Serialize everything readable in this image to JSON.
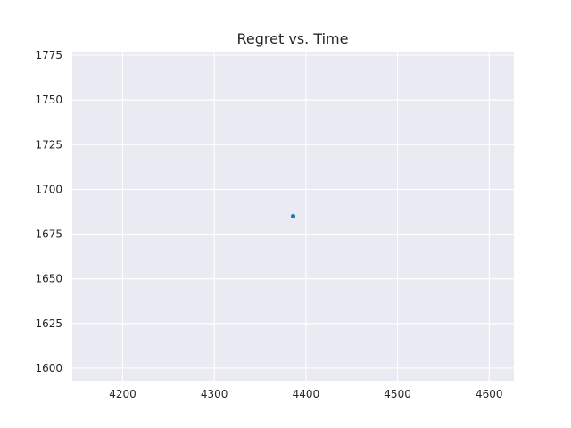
{
  "chart_data": {
    "type": "scatter",
    "title": "Regret vs. Time",
    "xlabel": "",
    "ylabel": "",
    "xlim": [
      4145,
      4627
    ],
    "ylim": [
      1593,
      1777
    ],
    "xticks": [
      4200,
      4300,
      4400,
      4500,
      4600
    ],
    "yticks": [
      1600,
      1625,
      1650,
      1675,
      1700,
      1725,
      1750,
      1775
    ],
    "grid": true,
    "series": [
      {
        "points": [
          {
            "x": 4386,
            "y": 1685
          }
        ]
      }
    ],
    "colors": {
      "background": "#eaeaf2",
      "grid": "#ffffff",
      "point": "#1f77b4"
    }
  }
}
